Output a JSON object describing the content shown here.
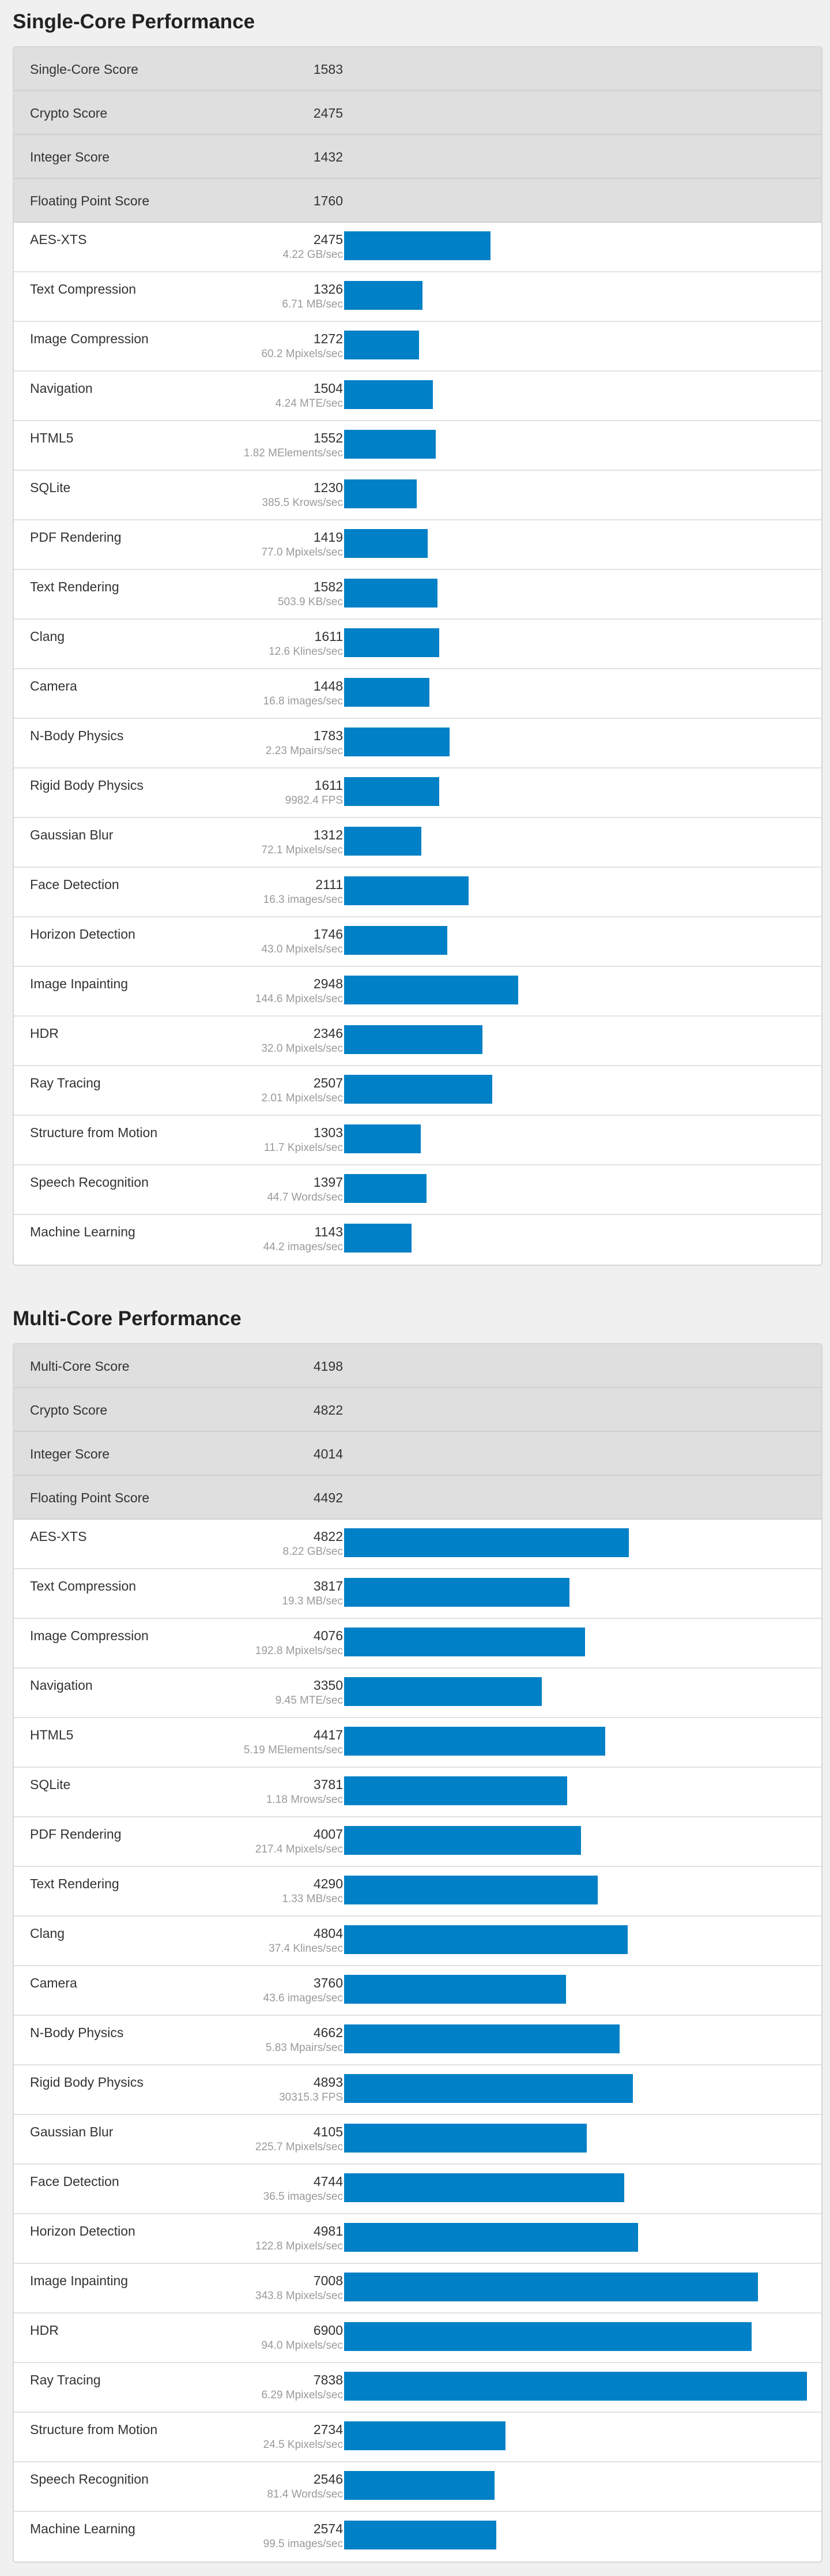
{
  "colors": {
    "bar": "#0080c6",
    "score_row_bg": "#dfdfdf",
    "page_bg": "#f0f0f0"
  },
  "chart_data": [
    {
      "type": "bar",
      "title": "Single-Core Performance",
      "xlim": [
        0,
        7838
      ],
      "summary": [
        {
          "label": "Single-Core Score",
          "value": "1583"
        },
        {
          "label": "Crypto Score",
          "value": "2475"
        },
        {
          "label": "Integer Score",
          "value": "1432"
        },
        {
          "label": "Floating Point Score",
          "value": "1760"
        }
      ],
      "rows": [
        {
          "name": "AES-XTS",
          "score": 2475,
          "unit": "4.22 GB/sec"
        },
        {
          "name": "Text Compression",
          "score": 1326,
          "unit": "6.71 MB/sec"
        },
        {
          "name": "Image Compression",
          "score": 1272,
          "unit": "60.2 Mpixels/sec"
        },
        {
          "name": "Navigation",
          "score": 1504,
          "unit": "4.24 MTE/sec"
        },
        {
          "name": "HTML5",
          "score": 1552,
          "unit": "1.82 MElements/sec"
        },
        {
          "name": "SQLite",
          "score": 1230,
          "unit": "385.5 Krows/sec"
        },
        {
          "name": "PDF Rendering",
          "score": 1419,
          "unit": "77.0 Mpixels/sec"
        },
        {
          "name": "Text Rendering",
          "score": 1582,
          "unit": "503.9 KB/sec"
        },
        {
          "name": "Clang",
          "score": 1611,
          "unit": "12.6 Klines/sec"
        },
        {
          "name": "Camera",
          "score": 1448,
          "unit": "16.8 images/sec"
        },
        {
          "name": "N-Body Physics",
          "score": 1783,
          "unit": "2.23 Mpairs/sec"
        },
        {
          "name": "Rigid Body Physics",
          "score": 1611,
          "unit": "9982.4 FPS"
        },
        {
          "name": "Gaussian Blur",
          "score": 1312,
          "unit": "72.1 Mpixels/sec"
        },
        {
          "name": "Face Detection",
          "score": 2111,
          "unit": "16.3 images/sec"
        },
        {
          "name": "Horizon Detection",
          "score": 1746,
          "unit": "43.0 Mpixels/sec"
        },
        {
          "name": "Image Inpainting",
          "score": 2948,
          "unit": "144.6 Mpixels/sec"
        },
        {
          "name": "HDR",
          "score": 2346,
          "unit": "32.0 Mpixels/sec"
        },
        {
          "name": "Ray Tracing",
          "score": 2507,
          "unit": "2.01 Mpixels/sec"
        },
        {
          "name": "Structure from Motion",
          "score": 1303,
          "unit": "11.7 Kpixels/sec"
        },
        {
          "name": "Speech Recognition",
          "score": 1397,
          "unit": "44.7 Words/sec"
        },
        {
          "name": "Machine Learning",
          "score": 1143,
          "unit": "44.2 images/sec"
        }
      ]
    },
    {
      "type": "bar",
      "title": "Multi-Core Performance",
      "xlim": [
        0,
        7838
      ],
      "summary": [
        {
          "label": "Multi-Core Score",
          "value": "4198"
        },
        {
          "label": "Crypto Score",
          "value": "4822"
        },
        {
          "label": "Integer Score",
          "value": "4014"
        },
        {
          "label": "Floating Point Score",
          "value": "4492"
        }
      ],
      "rows": [
        {
          "name": "AES-XTS",
          "score": 4822,
          "unit": "8.22 GB/sec"
        },
        {
          "name": "Text Compression",
          "score": 3817,
          "unit": "19.3 MB/sec"
        },
        {
          "name": "Image Compression",
          "score": 4076,
          "unit": "192.8 Mpixels/sec"
        },
        {
          "name": "Navigation",
          "score": 3350,
          "unit": "9.45 MTE/sec"
        },
        {
          "name": "HTML5",
          "score": 4417,
          "unit": "5.19 MElements/sec"
        },
        {
          "name": "SQLite",
          "score": 3781,
          "unit": "1.18 Mrows/sec"
        },
        {
          "name": "PDF Rendering",
          "score": 4007,
          "unit": "217.4 Mpixels/sec"
        },
        {
          "name": "Text Rendering",
          "score": 4290,
          "unit": "1.33 MB/sec"
        },
        {
          "name": "Clang",
          "score": 4804,
          "unit": "37.4 Klines/sec"
        },
        {
          "name": "Camera",
          "score": 3760,
          "unit": "43.6 images/sec"
        },
        {
          "name": "N-Body Physics",
          "score": 4662,
          "unit": "5.83 Mpairs/sec"
        },
        {
          "name": "Rigid Body Physics",
          "score": 4893,
          "unit": "30315.3 FPS"
        },
        {
          "name": "Gaussian Blur",
          "score": 4105,
          "unit": "225.7 Mpixels/sec"
        },
        {
          "name": "Face Detection",
          "score": 4744,
          "unit": "36.5 images/sec"
        },
        {
          "name": "Horizon Detection",
          "score": 4981,
          "unit": "122.8 Mpixels/sec"
        },
        {
          "name": "Image Inpainting",
          "score": 7008,
          "unit": "343.8 Mpixels/sec"
        },
        {
          "name": "HDR",
          "score": 6900,
          "unit": "94.0 Mpixels/sec"
        },
        {
          "name": "Ray Tracing",
          "score": 7838,
          "unit": "6.29 Mpixels/sec"
        },
        {
          "name": "Structure from Motion",
          "score": 2734,
          "unit": "24.5 Kpixels/sec"
        },
        {
          "name": "Speech Recognition",
          "score": 2546,
          "unit": "81.4 Words/sec"
        },
        {
          "name": "Machine Learning",
          "score": 2574,
          "unit": "99.5 images/sec"
        }
      ]
    }
  ]
}
